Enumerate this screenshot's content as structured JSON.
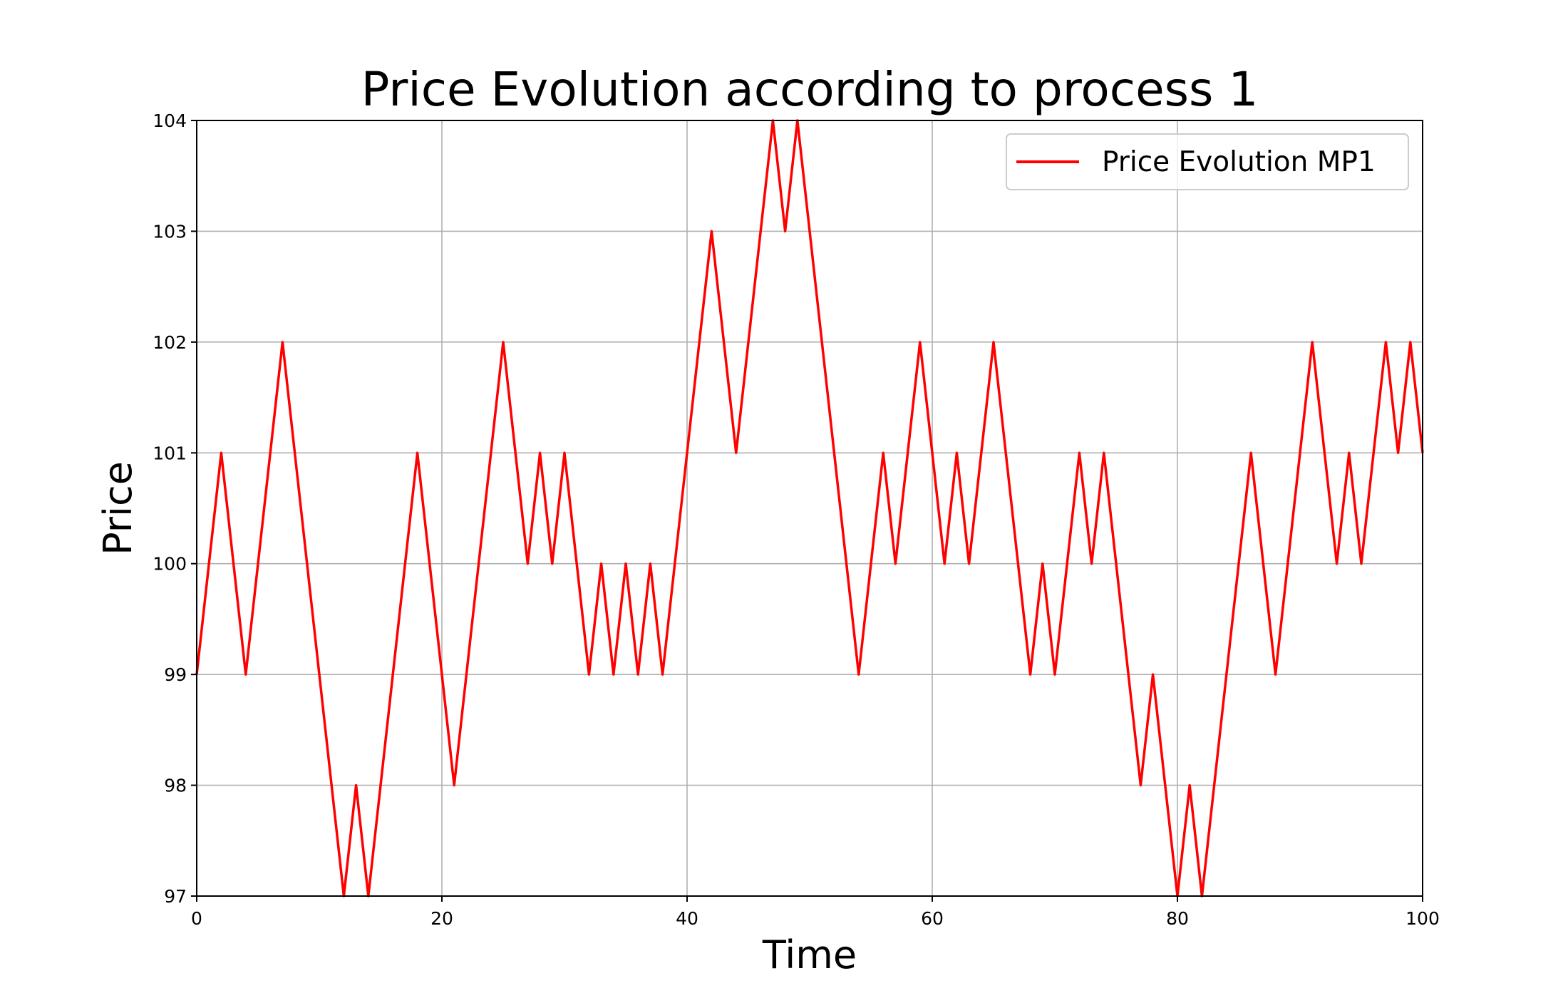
{
  "chart_data": {
    "type": "line",
    "title": "Price Evolution according to process 1",
    "xlabel": "Time",
    "ylabel": "Price",
    "xlim": [
      0,
      100
    ],
    "ylim": [
      97,
      104
    ],
    "xticks": [
      0,
      20,
      40,
      60,
      80,
      100
    ],
    "yticks": [
      97,
      98,
      99,
      100,
      101,
      102,
      103,
      104
    ],
    "grid": true,
    "legend": {
      "position": "top-right"
    },
    "series": [
      {
        "name": "Price Evolution MP1",
        "color": "#ff0000",
        "x": [
          0,
          2,
          4,
          7,
          12,
          13,
          14,
          18,
          21,
          25,
          27,
          28,
          29,
          30,
          32,
          33,
          34,
          35,
          36,
          37,
          38,
          42,
          44,
          47,
          48,
          49,
          54,
          56,
          57,
          59,
          61,
          62,
          63,
          65,
          68,
          69,
          70,
          72,
          73,
          74,
          77,
          78,
          80,
          81,
          82,
          86,
          88,
          91,
          93,
          94,
          95,
          97,
          98,
          99,
          100
        ],
        "y": [
          99,
          101,
          99,
          102,
          97,
          98,
          97,
          101,
          98,
          102,
          100,
          101,
          100,
          101,
          99,
          100,
          99,
          100,
          99,
          100,
          99,
          103,
          101,
          104,
          103,
          104,
          99,
          101,
          100,
          102,
          100,
          101,
          100,
          102,
          99,
          100,
          99,
          101,
          100,
          101,
          98,
          99,
          97,
          98,
          97,
          101,
          99,
          102,
          100,
          101,
          100,
          102,
          101,
          102,
          101
        ]
      }
    ]
  }
}
